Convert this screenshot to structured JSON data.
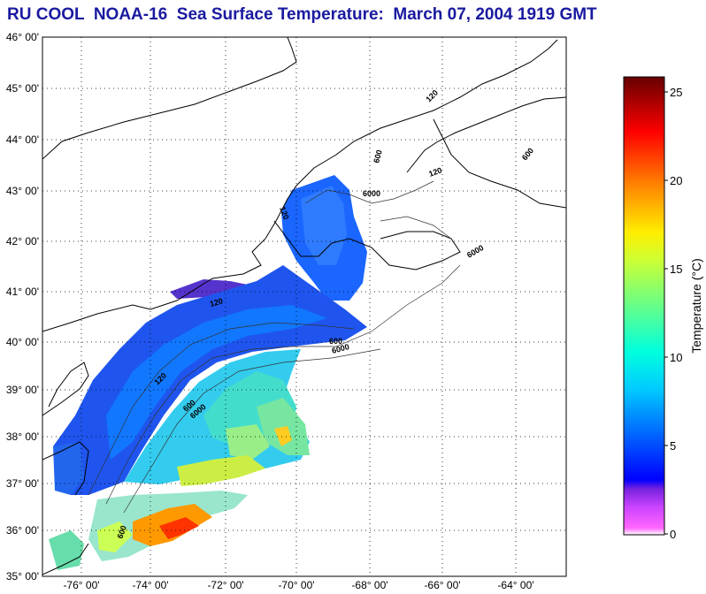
{
  "title": "RU COOL  NOAA-16  Sea Surface Temperature:  March 07, 2004 1919 GMT",
  "map": {
    "lat_labels": [
      "46° 00'",
      "45° 00'",
      "44° 00'",
      "43° 00'",
      "42° 00'",
      "41° 00'",
      "40° 00'",
      "39° 00'",
      "38° 00'",
      "37° 00'",
      "36° 00'",
      "35° 00'"
    ],
    "lon_labels": [
      "-76° 00'",
      "-74° 00'",
      "-72° 00'",
      "-70° 00'",
      "-68° 00'",
      "-66° 00'",
      "-64° 00'"
    ],
    "contour_labels": [
      "120",
      "600",
      "6000",
      "120",
      "600",
      "6000",
      "120",
      "600",
      "6000",
      "120",
      "600",
      "6000",
      "120",
      "600"
    ]
  },
  "colorbar": {
    "label": "Temperature (°C)",
    "ticks": [
      "25",
      "20",
      "15",
      "10",
      "5",
      "0"
    ],
    "min": 0,
    "max": 26,
    "colors": [
      "#ffffff",
      "#ff55ff",
      "#9900ff",
      "#0000ff",
      "#00aaff",
      "#00ffee",
      "#66ff66",
      "#ffff00",
      "#ff9900",
      "#ff0000",
      "#660000"
    ]
  }
}
